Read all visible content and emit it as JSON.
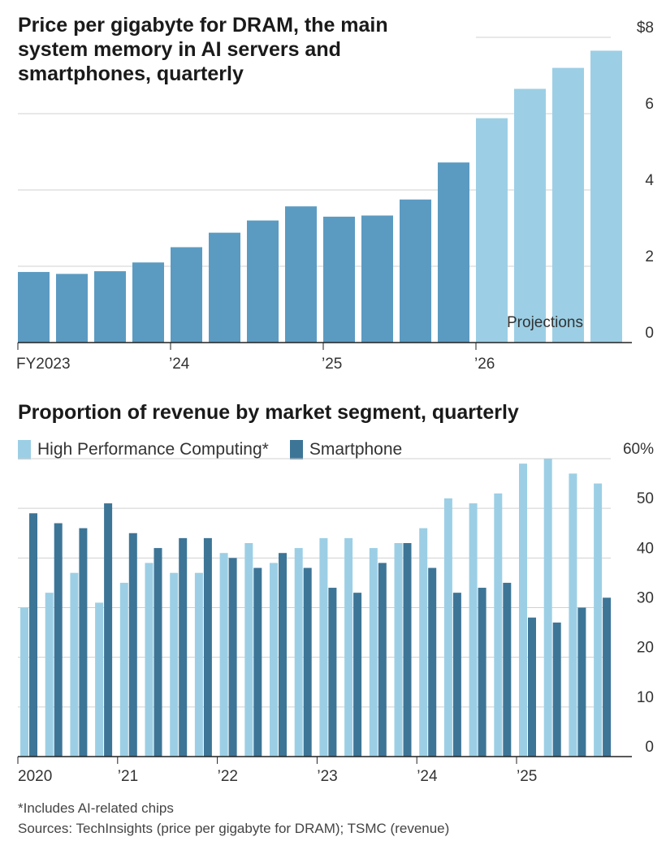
{
  "colors": {
    "actual": "#5b9bc2",
    "projection": "#9ccfe5",
    "hpc": "#9ccfe5",
    "smartphone": "#3d7597",
    "grid": "#d0d0d0",
    "axis": "#222222"
  },
  "chart_data": [
    {
      "type": "bar",
      "title": "Price per gigabyte for DRAM, the main system memory in AI servers and smartphones, quarterly",
      "ylim": [
        0,
        8
      ],
      "y_ticks": [
        0,
        2,
        4,
        6,
        8
      ],
      "y_tick_labels": [
        "0",
        "2",
        "4",
        "6",
        "$8"
      ],
      "x_labels": [
        {
          "index": 0,
          "label": "FY2023"
        },
        {
          "index": 4,
          "label": "’24"
        },
        {
          "index": 8,
          "label": "’25"
        },
        {
          "index": 12,
          "label": "’26"
        }
      ],
      "values": [
        1.85,
        1.8,
        1.87,
        2.1,
        2.5,
        2.88,
        3.2,
        3.57,
        3.3,
        3.33,
        3.75,
        4.72,
        5.88,
        6.65,
        7.2,
        7.65
      ],
      "projected_from_index": 12,
      "annotation": "Projections"
    },
    {
      "type": "bar",
      "title": "Proportion of revenue by market segment, quarterly",
      "ylim": [
        0,
        60
      ],
      "y_ticks": [
        0,
        10,
        20,
        30,
        40,
        50,
        60
      ],
      "y_tick_labels": [
        "0",
        "10",
        "20",
        "30",
        "40",
        "50",
        "60%"
      ],
      "x_labels": [
        {
          "index": 0,
          "label": "2020"
        },
        {
          "index": 4,
          "label": "’21"
        },
        {
          "index": 8,
          "label": "’22"
        },
        {
          "index": 12,
          "label": "’23"
        },
        {
          "index": 16,
          "label": "’24"
        },
        {
          "index": 20,
          "label": "’25"
        }
      ],
      "series": [
        {
          "name": "High Performance Computing*",
          "values": [
            30,
            33,
            37,
            31,
            35,
            39,
            37,
            37,
            41,
            43,
            39,
            42,
            44,
            44,
            42,
            43,
            46,
            52,
            51,
            53,
            59,
            60,
            57,
            55
          ]
        },
        {
          "name": "Smartphone",
          "values": [
            49,
            47,
            46,
            51,
            45,
            42,
            44,
            44,
            40,
            38,
            41,
            38,
            34,
            33,
            39,
            43,
            38,
            33,
            34,
            35,
            28,
            27,
            30,
            32
          ]
        }
      ]
    }
  ],
  "footnote": "*Includes AI-related chips",
  "sources": "Sources: TechInsights (price per gigabyte for DRAM); TSMC (revenue)"
}
